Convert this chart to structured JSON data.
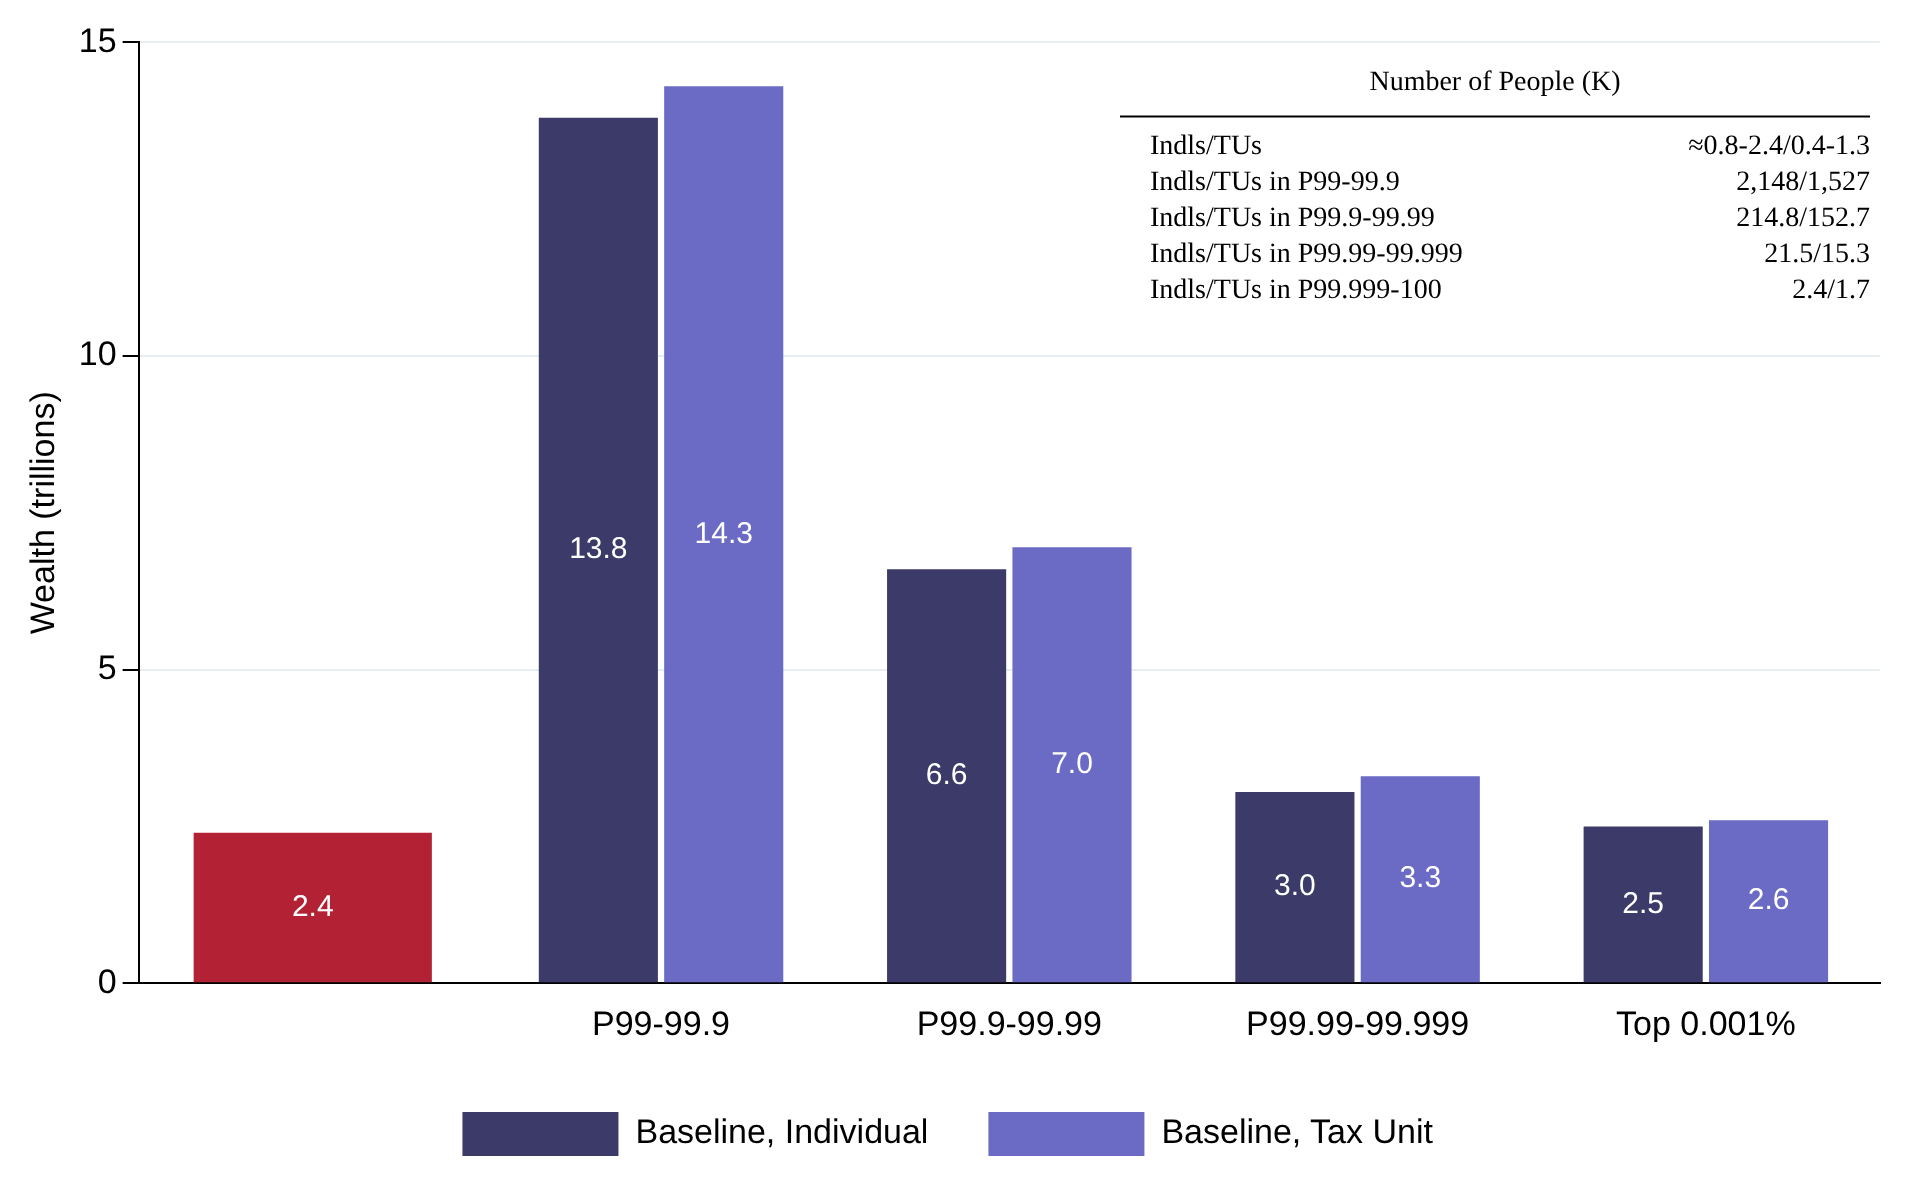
{
  "chart_data": {
    "type": "bar",
    "ylabel": "Wealth (trillions)",
    "categories": [
      null,
      "P99-99.9",
      "P99.9-99.99",
      "P99.99-99.999",
      "Top 0.001%"
    ],
    "series": [
      {
        "color": "#b22234",
        "values": [
          2.4,
          null,
          null,
          null,
          null
        ],
        "value_labels": [
          "2.4",
          null,
          null,
          null,
          null
        ]
      },
      {
        "name": "Baseline, Individual",
        "color": "#3b3a68",
        "values": [
          null,
          13.8,
          6.6,
          3.05,
          2.5
        ],
        "value_labels": [
          null,
          "13.8",
          "6.6",
          "3.0",
          "2.5"
        ]
      },
      {
        "name": "Baseline, Tax Unit",
        "color": "#6b6ac4",
        "values": [
          null,
          14.3,
          6.95,
          3.3,
          2.6
        ],
        "value_labels": [
          null,
          "14.3",
          "7.0",
          "3.3",
          "2.6"
        ]
      }
    ],
    "ylim": [
      0,
      15
    ],
    "yticks": [
      0,
      5,
      10,
      15
    ],
    "grid": "y",
    "legend": "bottom",
    "annotations": [
      "Number of People (K)",
      "Indls/TUs",
      "≈0.8-2.4/0.4-1.3",
      "Indls/TUs in P99-99.9",
      "2,148/1,527",
      "Indls/TUs in P99.9-99.99",
      "214.8/152.7",
      "Indls/TUs in P99.99-99.999",
      "21.5/15.3",
      "Indls/TUs in P99.999-100",
      "2.4/1.7"
    ]
  }
}
